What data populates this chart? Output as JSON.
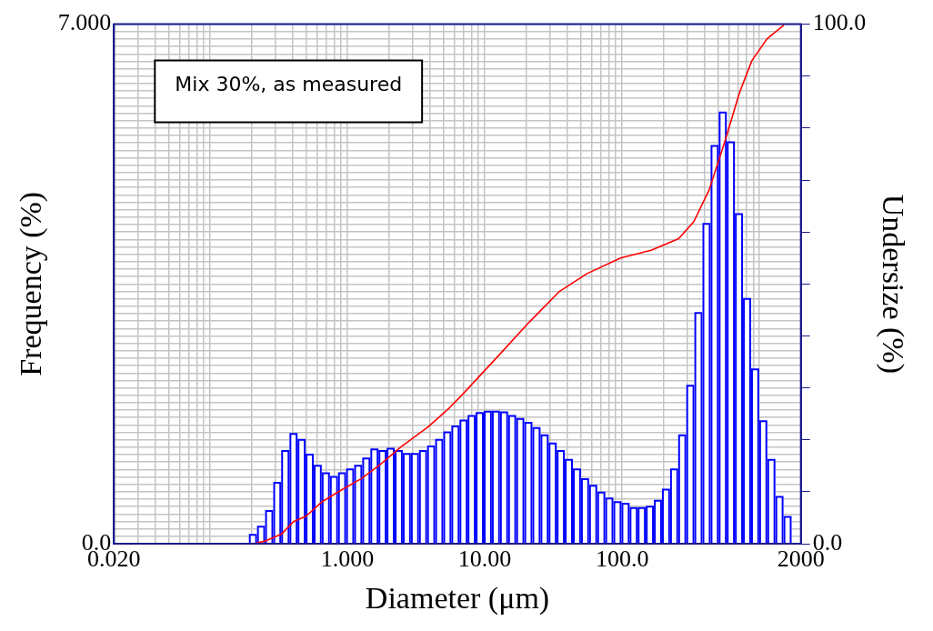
{
  "chart_data": {
    "type": "histogram",
    "xlabel": "Diameter (μm)",
    "ylabel": "Frequency (%)",
    "y2label": "Undersize (%)",
    "annotations": [
      "Mix 30%, as measured"
    ],
    "log": "x",
    "grid": true,
    "xlim": [
      0.02,
      2000
    ],
    "ylim": [
      0,
      7
    ],
    "y2lim": [
      0,
      100
    ],
    "xticks": [
      {
        "value": 0.02,
        "label": "0.020"
      },
      {
        "value": 0.03,
        "label": null
      },
      {
        "value": 0.04,
        "label": null
      },
      {
        "value": 0.05,
        "label": null
      },
      {
        "value": 0.06,
        "label": null
      },
      {
        "value": 0.07,
        "label": null
      },
      {
        "value": 0.08,
        "label": null
      },
      {
        "value": 0.09,
        "label": null
      },
      {
        "value": 0.1,
        "label": null
      },
      {
        "value": 0.2,
        "label": null
      },
      {
        "value": 0.3,
        "label": null
      },
      {
        "value": 0.4,
        "label": null
      },
      {
        "value": 0.5,
        "label": null
      },
      {
        "value": 0.6,
        "label": null
      },
      {
        "value": 0.7,
        "label": null
      },
      {
        "value": 0.8,
        "label": null
      },
      {
        "value": 0.9,
        "label": null
      },
      {
        "value": 1,
        "label": "1.000"
      },
      {
        "value": 2,
        "label": null
      },
      {
        "value": 3,
        "label": null
      },
      {
        "value": 4,
        "label": null
      },
      {
        "value": 5,
        "label": null
      },
      {
        "value": 6,
        "label": null
      },
      {
        "value": 7,
        "label": null
      },
      {
        "value": 8,
        "label": null
      },
      {
        "value": 9,
        "label": null
      },
      {
        "value": 10,
        "label": "10.00"
      },
      {
        "value": 20,
        "label": null
      },
      {
        "value": 30,
        "label": null
      },
      {
        "value": 40,
        "label": null
      },
      {
        "value": 50,
        "label": null
      },
      {
        "value": 60,
        "label": null
      },
      {
        "value": 70,
        "label": null
      },
      {
        "value": 80,
        "label": null
      },
      {
        "value": 90,
        "label": null
      },
      {
        "value": 100,
        "label": "100.0"
      },
      {
        "value": 200,
        "label": null
      },
      {
        "value": 300,
        "label": null
      },
      {
        "value": 400,
        "label": null
      },
      {
        "value": 500,
        "label": null
      },
      {
        "value": 600,
        "label": null
      },
      {
        "value": 700,
        "label": null
      },
      {
        "value": 800,
        "label": null
      },
      {
        "value": 900,
        "label": null
      },
      {
        "value": 1000,
        "label": null
      },
      {
        "value": 2000,
        "label": "2000"
      }
    ],
    "yticks": [
      {
        "value": 0,
        "label": "0.0"
      },
      {
        "value": 0.1,
        "label": null
      },
      {
        "value": 0.2,
        "label": null
      },
      {
        "value": 0.3,
        "label": null
      },
      {
        "value": 0.4,
        "label": null
      },
      {
        "value": 0.5,
        "label": null
      },
      {
        "value": 0.6,
        "label": null
      },
      {
        "value": 0.7,
        "label": null
      },
      {
        "value": 0.8,
        "label": null
      },
      {
        "value": 0.9,
        "label": null
      },
      {
        "value": 1,
        "label": null
      },
      {
        "value": 1.1,
        "label": null
      },
      {
        "value": 1.2,
        "label": null
      },
      {
        "value": 1.3,
        "label": null
      },
      {
        "value": 1.4,
        "label": null
      },
      {
        "value": 1.5,
        "label": null
      },
      {
        "value": 1.6,
        "label": null
      },
      {
        "value": 1.7,
        "label": null
      },
      {
        "value": 1.8,
        "label": null
      },
      {
        "value": 1.9,
        "label": null
      },
      {
        "value": 2,
        "label": null
      },
      {
        "value": 2.1,
        "label": null
      },
      {
        "value": 2.2,
        "label": null
      },
      {
        "value": 2.3,
        "label": null
      },
      {
        "value": 2.4,
        "label": null
      },
      {
        "value": 2.5,
        "label": null
      },
      {
        "value": 2.6,
        "label": null
      },
      {
        "value": 2.7,
        "label": null
      },
      {
        "value": 2.8,
        "label": null
      },
      {
        "value": 2.9,
        "label": null
      },
      {
        "value": 3,
        "label": null
      },
      {
        "value": 3.1,
        "label": null
      },
      {
        "value": 3.2,
        "label": null
      },
      {
        "value": 3.3,
        "label": null
      },
      {
        "value": 3.4,
        "label": null
      },
      {
        "value": 3.5,
        "label": null
      },
      {
        "value": 3.6,
        "label": null
      },
      {
        "value": 3.7,
        "label": null
      },
      {
        "value": 3.8,
        "label": null
      },
      {
        "value": 3.9,
        "label": null
      },
      {
        "value": 4,
        "label": null
      },
      {
        "value": 4.1,
        "label": null
      },
      {
        "value": 4.2,
        "label": null
      },
      {
        "value": 4.3,
        "label": null
      },
      {
        "value": 4.4,
        "label": null
      },
      {
        "value": 4.5,
        "label": null
      },
      {
        "value": 4.6,
        "label": null
      },
      {
        "value": 4.7,
        "label": null
      },
      {
        "value": 4.8,
        "label": null
      },
      {
        "value": 4.9,
        "label": null
      },
      {
        "value": 5,
        "label": null
      },
      {
        "value": 5.1,
        "label": null
      },
      {
        "value": 5.2,
        "label": null
      },
      {
        "value": 5.3,
        "label": null
      },
      {
        "value": 5.4,
        "label": null
      },
      {
        "value": 5.5,
        "label": null
      },
      {
        "value": 5.6,
        "label": null
      },
      {
        "value": 5.7,
        "label": null
      },
      {
        "value": 5.8,
        "label": null
      },
      {
        "value": 5.9,
        "label": null
      },
      {
        "value": 6,
        "label": null
      },
      {
        "value": 6.1,
        "label": null
      },
      {
        "value": 6.2,
        "label": null
      },
      {
        "value": 6.3,
        "label": null
      },
      {
        "value": 6.4,
        "label": null
      },
      {
        "value": 6.5,
        "label": null
      },
      {
        "value": 6.6,
        "label": null
      },
      {
        "value": 6.7,
        "label": null
      },
      {
        "value": 6.8,
        "label": null
      },
      {
        "value": 6.9,
        "label": null
      },
      {
        "value": 7,
        "label": "7.000"
      }
    ],
    "y2ticks": [
      {
        "value": 0,
        "label": "0.0"
      },
      {
        "value": 10,
        "label": null
      },
      {
        "value": 20,
        "label": null
      },
      {
        "value": 30,
        "label": null
      },
      {
        "value": 40,
        "label": null
      },
      {
        "value": 50,
        "label": null
      },
      {
        "value": 60,
        "label": null
      },
      {
        "value": 70,
        "label": null
      },
      {
        "value": 80,
        "label": null
      },
      {
        "value": 90,
        "label": null
      },
      {
        "value": 100,
        "label": "100.0"
      }
    ],
    "series": [
      {
        "type": "histogram",
        "color": "#0000ff",
        "bins": [
          0.192,
          0.22,
          0.252,
          0.289,
          0.33,
          0.379,
          0.434,
          0.497,
          0.569,
          0.651,
          0.746,
          0.855,
          0.979,
          1.121,
          1.284,
          1.471,
          1.685,
          1.93,
          2.211,
          2.532,
          2.901,
          3.322,
          3.805,
          4.358,
          4.992,
          5.717,
          6.549,
          7.501,
          8.592,
          9.842,
          11.27,
          12.91,
          14.79,
          16.94,
          19.41,
          22.23,
          25.46,
          29.16,
          33.4,
          38.25,
          43.82,
          50.19,
          57.48,
          65.84,
          75.41,
          86.38,
          98.92,
          113.3,
          129.8,
          148.7,
          170.3,
          195.0,
          223.4,
          255.9,
          293.1,
          335.7,
          384.5,
          440.5,
          504.5,
          577.8,
          661.9,
          758.1,
          868.3,
          994.5,
          1139,
          1305,
          1495,
          1712
        ],
        "values": [
          0.12,
          0.23,
          0.44,
          0.82,
          1.25,
          1.48,
          1.4,
          1.2,
          1.05,
          0.95,
          0.9,
          0.95,
          1.0,
          1.05,
          1.15,
          1.27,
          1.25,
          1.28,
          1.25,
          1.21,
          1.21,
          1.25,
          1.31,
          1.4,
          1.5,
          1.58,
          1.66,
          1.72,
          1.76,
          1.78,
          1.78,
          1.77,
          1.72,
          1.68,
          1.63,
          1.56,
          1.46,
          1.35,
          1.25,
          1.13,
          1.0,
          0.87,
          0.78,
          0.69,
          0.61,
          0.56,
          0.54,
          0.48,
          0.48,
          0.5,
          0.58,
          0.73,
          1.0,
          1.46,
          2.13,
          3.11,
          4.31,
          5.36,
          5.81,
          5.41,
          4.44,
          3.3,
          2.35,
          1.65,
          1.13,
          0.63,
          0.36
        ]
      },
      {
        "type": "line",
        "axis": "y2",
        "color": "#ff0000",
        "x": [
          0.209,
          0.251,
          0.333,
          0.408,
          0.501,
          0.648,
          0.926,
          1.259,
          1.711,
          2.45,
          3.88,
          5.56,
          6.81,
          12.6,
          21.0,
          35.1,
          55.6,
          97.5,
          162.6,
          257.8,
          332.6,
          429.9,
          555.6,
          716.6,
          880.5,
          1135,
          1505
        ],
        "values": [
          0,
          0.5,
          1.9,
          4.3,
          5.3,
          8.0,
          10.5,
          12.5,
          15.1,
          18.6,
          22.5,
          26.2,
          28.6,
          36.2,
          42.6,
          48.6,
          52.0,
          55.0,
          56.5,
          58.7,
          62.0,
          68.1,
          77.2,
          86.9,
          93.0,
          97.2,
          99.8
        ]
      }
    ]
  }
}
